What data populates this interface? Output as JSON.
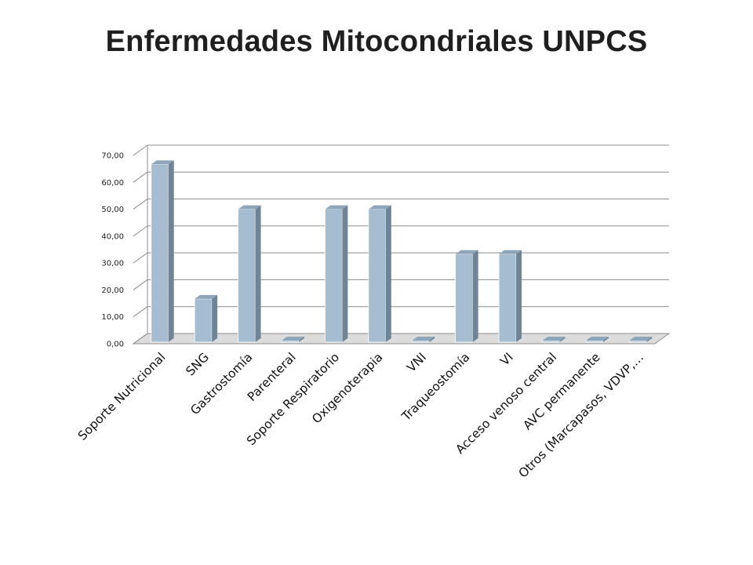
{
  "title": "Enfermedades Mitocondriales UNPCS",
  "colors": {
    "bar_front": "#a6bdd1",
    "bar_side": "#6f8596",
    "bar_top": "#8ea6ba",
    "grid": "#8c8c8c",
    "floor": "#dcdcdc"
  },
  "chart_data": {
    "type": "bar",
    "title": "Enfermedades Mitocondriales UNPCS",
    "xlabel": "",
    "ylabel": "",
    "ylim": [
      0,
      70
    ],
    "yticks": [
      0,
      10,
      20,
      30,
      40,
      50,
      60,
      70
    ],
    "ytick_labels": [
      "0,00",
      "10,00",
      "20,00",
      "30,00",
      "40,00",
      "50,00",
      "60,00",
      "70,00"
    ],
    "grid": true,
    "style": "3d-column",
    "categories": [
      "Soporte Nutricional",
      "SNG",
      "Gastrostomía",
      "Parenteral",
      "Soporte Respiratorio",
      "Oxigenoterapia",
      "VNI",
      "Traqueostomía",
      "VI",
      "Acceso venoso central",
      "AVC permanente",
      "Otros (Marcapasos, VDVP,…"
    ],
    "values": [
      66.67,
      16.67,
      50.0,
      0,
      50.0,
      50.0,
      0,
      33.33,
      33.33,
      0,
      0,
      0
    ]
  }
}
